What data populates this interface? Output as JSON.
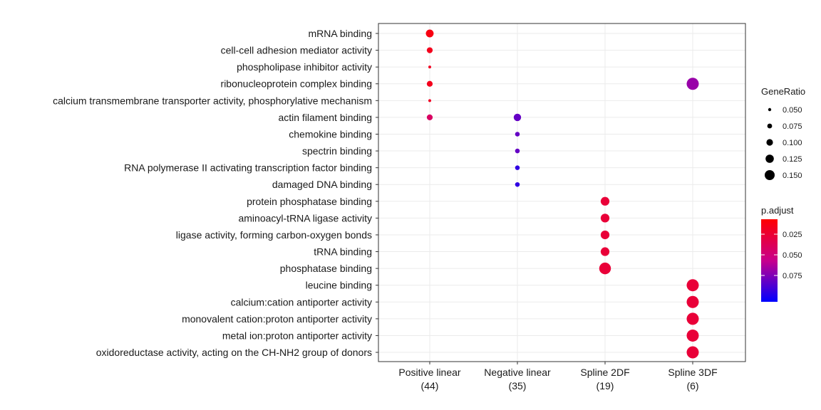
{
  "chart_data": {
    "type": "scatter",
    "subtype": "dot-plot",
    "x_categories": [
      {
        "label": "Positive linear",
        "count": "(44)"
      },
      {
        "label": "Negative linear",
        "count": "(35)"
      },
      {
        "label": "Spline 2DF",
        "count": "(19)"
      },
      {
        "label": "Spline 3DF",
        "count": "(6)"
      }
    ],
    "y_categories": [
      "mRNA binding",
      "cell-cell adhesion mediator activity",
      "phospholipase inhibitor activity",
      "ribonucleoprotein complex binding",
      "calcium transmembrane transporter activity, phosphorylative mechanism",
      "actin filament binding",
      "chemokine binding",
      "spectrin binding",
      "RNA polymerase II activating transcription factor binding",
      "damaged DNA binding",
      "protein phosphatase binding",
      "aminoacyl-tRNA ligase activity",
      "ligase activity, forming carbon-oxygen bonds",
      "tRNA binding",
      "phosphatase binding",
      "leucine binding",
      "calcium:cation antiporter activity",
      "monovalent cation:proton antiporter activity",
      "metal ion:proton antiporter activity",
      "oxidoreductase activity, acting on the CH-NH2 group of donors"
    ],
    "points": [
      {
        "term": "mRNA binding",
        "group": "Positive linear",
        "gene_ratio": 0.091,
        "p_adjust": 0.006
      },
      {
        "term": "cell-cell adhesion mediator activity",
        "group": "Positive linear",
        "gene_ratio": 0.068,
        "p_adjust": 0.01
      },
      {
        "term": "phospholipase inhibitor activity",
        "group": "Positive linear",
        "gene_ratio": 0.045,
        "p_adjust": 0.012
      },
      {
        "term": "ribonucleoprotein complex binding",
        "group": "Positive linear",
        "gene_ratio": 0.068,
        "p_adjust": 0.01
      },
      {
        "term": "calcium transmembrane transporter activity, phosphorylative mechanism",
        "group": "Positive linear",
        "gene_ratio": 0.045,
        "p_adjust": 0.012
      },
      {
        "term": "actin filament binding",
        "group": "Positive linear",
        "gene_ratio": 0.068,
        "p_adjust": 0.035
      },
      {
        "term": "ribonucleoprotein complex binding",
        "group": "Spline 3DF",
        "gene_ratio": 0.167,
        "p_adjust": 0.062
      },
      {
        "term": "actin filament binding",
        "group": "Negative linear",
        "gene_ratio": 0.086,
        "p_adjust": 0.075
      },
      {
        "term": "chemokine binding",
        "group": "Negative linear",
        "gene_ratio": 0.057,
        "p_adjust": 0.075
      },
      {
        "term": "spectrin binding",
        "group": "Negative linear",
        "gene_ratio": 0.057,
        "p_adjust": 0.075
      },
      {
        "term": "RNA polymerase II activating transcription factor binding",
        "group": "Negative linear",
        "gene_ratio": 0.057,
        "p_adjust": 0.088
      },
      {
        "term": "damaged DNA binding",
        "group": "Negative linear",
        "gene_ratio": 0.057,
        "p_adjust": 0.088
      },
      {
        "term": "protein phosphatase binding",
        "group": "Spline 2DF",
        "gene_ratio": 0.105,
        "p_adjust": 0.02
      },
      {
        "term": "aminoacyl-tRNA ligase activity",
        "group": "Spline 2DF",
        "gene_ratio": 0.105,
        "p_adjust": 0.02
      },
      {
        "term": "ligase activity, forming carbon-oxygen bonds",
        "group": "Spline 2DF",
        "gene_ratio": 0.105,
        "p_adjust": 0.02
      },
      {
        "term": "tRNA binding",
        "group": "Spline 2DF",
        "gene_ratio": 0.105,
        "p_adjust": 0.02
      },
      {
        "term": "phosphatase binding",
        "group": "Spline 2DF",
        "gene_ratio": 0.158,
        "p_adjust": 0.02
      },
      {
        "term": "leucine binding",
        "group": "Spline 3DF",
        "gene_ratio": 0.167,
        "p_adjust": 0.02
      },
      {
        "term": "calcium:cation antiporter activity",
        "group": "Spline 3DF",
        "gene_ratio": 0.167,
        "p_adjust": 0.02
      },
      {
        "term": "monovalent cation:proton antiporter activity",
        "group": "Spline 3DF",
        "gene_ratio": 0.167,
        "p_adjust": 0.02
      },
      {
        "term": "metal ion:proton antiporter activity",
        "group": "Spline 3DF",
        "gene_ratio": 0.167,
        "p_adjust": 0.02
      },
      {
        "term": "oxidoreductase activity, acting on the CH-NH2 group of donors",
        "group": "Spline 3DF",
        "gene_ratio": 0.167,
        "p_adjust": 0.02
      }
    ],
    "size_legend": {
      "title": "GeneRatio",
      "breaks": [
        "0.050",
        "0.075",
        "0.100",
        "0.125",
        "0.150"
      ],
      "values": [
        0.05,
        0.075,
        0.1,
        0.125,
        0.15
      ]
    },
    "color_legend": {
      "title": "p.adjust",
      "breaks": [
        "0.025",
        "0.050",
        "0.075"
      ],
      "values": [
        0.025,
        0.05,
        0.075
      ],
      "range": [
        0.0,
        0.1
      ],
      "low_color": "#ff0000",
      "high_color": "#0000ff"
    },
    "grid": true,
    "legend_position": "right"
  }
}
